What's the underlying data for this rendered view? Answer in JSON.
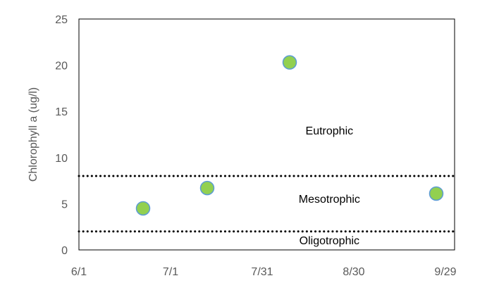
{
  "chart_data": {
    "type": "scatter",
    "title": "",
    "xlabel": "",
    "ylabel": "Chlorophyll a (ug/l)",
    "x_ticks": [
      "6/1",
      "7/1",
      "7/31",
      "8/30",
      "9/29"
    ],
    "x_tick_days": [
      0,
      30,
      60,
      90,
      120
    ],
    "xlim": [
      "6/1",
      "10/2"
    ],
    "y_ticks": [
      0,
      5,
      10,
      15,
      20,
      25
    ],
    "ylim": [
      0,
      25
    ],
    "grid": false,
    "points": [
      {
        "date": "6/22",
        "day": 21,
        "value": 4.5
      },
      {
        "date": "7/13",
        "day": 42,
        "value": 6.7
      },
      {
        "date": "8/9",
        "day": 69,
        "value": 20.3
      },
      {
        "date": "9/26",
        "day": 117,
        "value": 6.1
      }
    ],
    "thresholds": [
      {
        "value": 8,
        "style": "dotted"
      },
      {
        "value": 2,
        "style": "dotted"
      }
    ],
    "zone_labels": [
      {
        "text": "Eutrophic",
        "day": 82,
        "value": 12.5
      },
      {
        "text": "Mesotrophic",
        "day": 82,
        "value": 5.1
      },
      {
        "text": "Oligotrophic",
        "day": 82,
        "value": 0.6
      }
    ],
    "colors": {
      "marker_fill": "#92d050",
      "marker_stroke": "#5b9bd5",
      "axis": "#000000",
      "threshold": "#000000"
    }
  }
}
